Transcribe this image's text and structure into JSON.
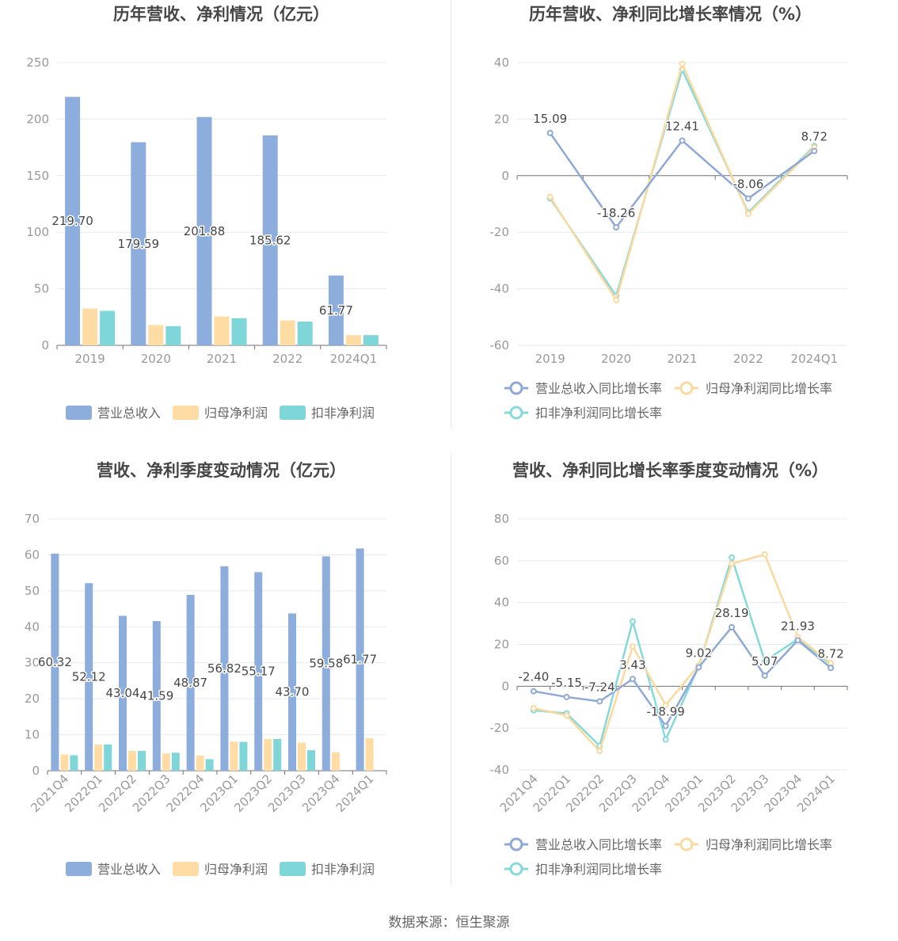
{
  "source_text": "数据来源：恒生聚源",
  "colors": {
    "revenue": "#8daedc",
    "net_profit": "#ffdca3",
    "deducted_profit": "#7fd6d8",
    "revenue_line": "#8ea9d8",
    "net_profit_line": "#fbd99e",
    "deducted_line": "#86d9d9",
    "grid": "#e6e8f0",
    "axis": "#6e7079",
    "tick_text": "#999999",
    "title": "#464646",
    "label": "#464646"
  },
  "chart_data": [
    {
      "id": "annual_amounts",
      "type": "bar",
      "title": "历年营收、净利情况（亿元）",
      "categories": [
        "2019",
        "2020",
        "2021",
        "2022",
        "2024Q1"
      ],
      "ylim": [
        0,
        250
      ],
      "yticks": [
        "0",
        "50",
        "100",
        "150",
        "200",
        "250"
      ],
      "grid": true,
      "legend_position": "bottom",
      "label_series": 0,
      "series": [
        {
          "name": "营业总收入",
          "values": [
            219.7,
            179.59,
            201.88,
            185.62,
            61.77
          ],
          "labels": [
            "219.70",
            "179.59",
            "201.88",
            "185.62",
            "61.77"
          ]
        },
        {
          "name": "归母净利润",
          "values": [
            32.5,
            18.0,
            25.5,
            22.0,
            9.0
          ]
        },
        {
          "name": "扣非净利润",
          "values": [
            30.5,
            17.0,
            24.0,
            21.0,
            9.0
          ]
        }
      ]
    },
    {
      "id": "annual_growth",
      "type": "line",
      "title": "历年营收、净利同比增长率情况（%）",
      "categories": [
        "2019",
        "2020",
        "2021",
        "2022",
        "2024Q1"
      ],
      "ylim": [
        -60,
        40
      ],
      "yticks": [
        "-60",
        "-40",
        "-20",
        "0",
        "20",
        "40"
      ],
      "grid": true,
      "legend_position": "bottom",
      "label_series": 0,
      "series": [
        {
          "name": "营业总收入同比增长率",
          "values": [
            15.09,
            -18.26,
            12.41,
            -8.06,
            8.72
          ],
          "labels": [
            "15.09",
            "-18.26",
            "12.41",
            "-8.06",
            "8.72"
          ]
        },
        {
          "name": "归母净利润同比增长率",
          "values": [
            -7.5,
            -44.0,
            39.5,
            -13.5,
            10.0
          ]
        },
        {
          "name": "扣非净利润同比增长率",
          "values": [
            -8.0,
            -42.5,
            37.5,
            -13.0,
            10.5
          ]
        }
      ]
    },
    {
      "id": "quarterly_amounts",
      "type": "bar",
      "title": "营收、净利季度变动情况（亿元）",
      "categories": [
        "2021Q4",
        "2022Q1",
        "2022Q2",
        "2022Q3",
        "2022Q4",
        "2023Q1",
        "2023Q2",
        "2023Q3",
        "2023Q4",
        "2024Q1"
      ],
      "ylim": [
        0,
        70
      ],
      "yticks": [
        "0",
        "10",
        "20",
        "30",
        "40",
        "50",
        "60",
        "70"
      ],
      "grid": true,
      "legend_position": "bottom",
      "label_series": 0,
      "series": [
        {
          "name": "营业总收入",
          "values": [
            60.32,
            52.12,
            43.04,
            41.59,
            48.87,
            56.82,
            55.17,
            43.7,
            59.58,
            61.77
          ],
          "labels": [
            "60.32",
            "52.12",
            "43.04",
            "41.59",
            "48.87",
            "56.82",
            "55.17",
            "43.70",
            "59.58",
            "61.77"
          ]
        },
        {
          "name": "归母净利润",
          "values": [
            4.5,
            7.3,
            5.5,
            4.8,
            4.2,
            8.1,
            8.8,
            7.8,
            5.1,
            9.0
          ]
        },
        {
          "name": "扣非净利润",
          "values": [
            4.3,
            7.3,
            5.5,
            5.0,
            3.2,
            8.0,
            8.8,
            5.7,
            0,
            0
          ]
        }
      ]
    },
    {
      "id": "quarterly_growth",
      "type": "line",
      "title": "营收、净利同比增长率季度变动情况（%）",
      "categories": [
        "2021Q4",
        "2022Q1",
        "2022Q2",
        "2022Q3",
        "2022Q4",
        "2023Q1",
        "2023Q2",
        "2023Q3",
        "2023Q4",
        "2024Q1"
      ],
      "ylim": [
        -40,
        80
      ],
      "yticks": [
        "-40",
        "-20",
        "0",
        "20",
        "40",
        "60",
        "80"
      ],
      "grid": true,
      "legend_position": "bottom",
      "label_series": 0,
      "series": [
        {
          "name": "营业总收入同比增长率",
          "values": [
            -2.4,
            -5.15,
            -7.24,
            3.43,
            -18.99,
            9.02,
            28.19,
            5.07,
            21.93,
            8.72
          ],
          "labels": [
            "-2.40",
            "-5.15",
            "-7.24",
            "3.43",
            "-18.99",
            "9.02",
            "28.19",
            "5.07",
            "21.93",
            "8.72"
          ]
        },
        {
          "name": "归母净利润同比增长率",
          "values": [
            -10.5,
            -14.0,
            -31.0,
            19.0,
            -9.0,
            10.0,
            58.5,
            63.0,
            23.5,
            11.0
          ]
        },
        {
          "name": "扣非净利润同比增长率",
          "values": [
            -11.5,
            -13.0,
            -28.5,
            31.0,
            -25.5,
            9.5,
            61.5,
            12.0,
            22.5,
            10.5
          ]
        }
      ]
    }
  ]
}
